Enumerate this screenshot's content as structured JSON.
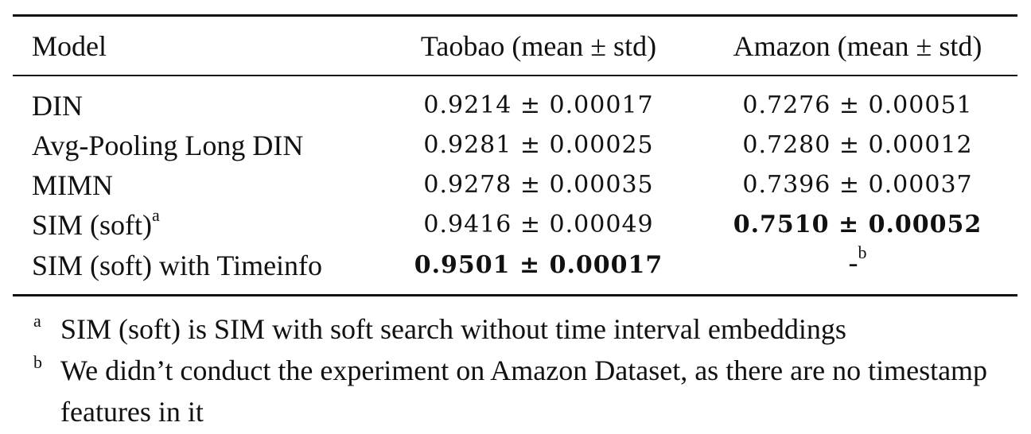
{
  "table": {
    "headers": {
      "model": "Model",
      "taobao": "Taobao (mean ± std)",
      "amazon": "Amazon (mean ± std)"
    },
    "rows": [
      {
        "model": "DIN",
        "model_sup": "",
        "taobao": "0.9214 ± 0.00017",
        "taobao_bold": false,
        "amazon": "0.7276 ± 0.00051",
        "amazon_bold": false,
        "amazon_sup": ""
      },
      {
        "model": "Avg-Pooling Long DIN",
        "model_sup": "",
        "taobao": "0.9281 ± 0.00025",
        "taobao_bold": false,
        "amazon": "0.7280 ± 0.00012",
        "amazon_bold": false,
        "amazon_sup": ""
      },
      {
        "model": "MIMN",
        "model_sup": "",
        "taobao": "0.9278 ± 0.00035",
        "taobao_bold": false,
        "amazon": "0.7396 ± 0.00037",
        "amazon_bold": false,
        "amazon_sup": ""
      },
      {
        "model": "SIM (soft)",
        "model_sup": "a",
        "taobao": "0.9416 ± 0.00049",
        "taobao_bold": false,
        "amazon": "0.7510 ± 0.00052",
        "amazon_bold": true,
        "amazon_sup": ""
      },
      {
        "model": "SIM (soft) with Timeinfo",
        "model_sup": "",
        "taobao": "0.9501 ± 0.00017",
        "taobao_bold": true,
        "amazon": "-",
        "amazon_bold": false,
        "amazon_sup": "b"
      }
    ]
  },
  "footnotes": [
    {
      "mark": "a",
      "text": "SIM (soft) is SIM with soft search without time interval embeddings"
    },
    {
      "mark": "b",
      "text": "We didn’t conduct the experiment on Amazon Dataset, as there are no timestamp features in it"
    }
  ]
}
